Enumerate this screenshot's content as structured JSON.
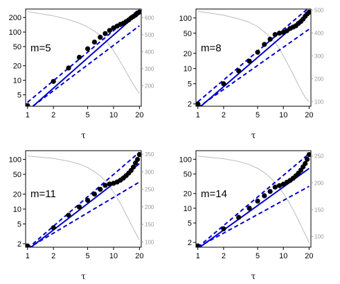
{
  "chart_data": [
    {
      "type": "scatter",
      "panel_label": "m=5",
      "xlabel": "τ",
      "x_ticks": [
        "1",
        "2",
        "5",
        "10",
        "20"
      ],
      "x_ticks_v": [
        1,
        2,
        5,
        10,
        20
      ],
      "y_ticks": [
        "5",
        "10",
        "20",
        "50",
        "100",
        "200"
      ],
      "y_ticks_v": [
        5,
        10,
        20,
        50,
        100,
        200
      ],
      "y_right_ticks": [
        "200",
        "300",
        "400",
        "500",
        "600"
      ],
      "y_right_ticks_v": [
        200,
        300,
        400,
        500,
        600
      ],
      "x_range": [
        0.95,
        21
      ],
      "y_range": [
        2.9,
        300
      ],
      "y_right_range": [
        80,
        650
      ],
      "points": {
        "x": [
          1,
          2,
          3,
          4,
          5,
          6,
          7,
          8,
          9,
          10,
          11,
          12,
          13,
          14,
          15,
          16,
          17,
          18,
          19,
          20
        ],
        "y": [
          3,
          9.5,
          18,
          30,
          45,
          62,
          78,
          93,
          108,
          122,
          133,
          144,
          152,
          165,
          178,
          196,
          210,
          225,
          245,
          260
        ]
      },
      "fit_line": {
        "x": [
          1,
          20
        ],
        "y": [
          2.3,
          260
        ],
        "color": "#0000cc"
      },
      "upper_band": {
        "x": [
          1,
          20
        ],
        "y": [
          3.5,
          300
        ],
        "color": "#0000cc"
      },
      "lower_band": {
        "x": [
          1,
          20
        ],
        "y": [
          2.4,
          135
        ],
        "color": "#0000cc"
      },
      "gray_curve": {
        "x": [
          1,
          2,
          3,
          4,
          5,
          6,
          7,
          8,
          9,
          10,
          11,
          12,
          13,
          14,
          15,
          16,
          17,
          18,
          19,
          20
        ],
        "y": [
          635,
          610,
          588,
          567,
          545,
          520,
          495,
          468,
          438,
          405,
          372,
          340,
          310,
          282,
          255,
          230,
          208,
          188,
          170,
          155
        ],
        "color": "#bbbbbb"
      }
    },
    {
      "type": "scatter",
      "panel_label": "m=8",
      "xlabel": "τ",
      "x_ticks": [
        "1",
        "2",
        "5",
        "10",
        "20"
      ],
      "x_ticks_v": [
        1,
        2,
        5,
        10,
        20
      ],
      "y_ticks": [
        "2",
        "5",
        "10",
        "20",
        "50",
        "100"
      ],
      "y_ticks_v": [
        2,
        5,
        10,
        20,
        50,
        100
      ],
      "y_right_ticks": [
        "100",
        "200",
        "300",
        "400",
        "500"
      ],
      "y_right_ticks_v": [
        100,
        200,
        300,
        400,
        500
      ],
      "x_range": [
        0.95,
        21
      ],
      "y_range": [
        1.8,
        150
      ],
      "y_right_range": [
        80,
        505
      ],
      "points": {
        "x": [
          1,
          2,
          3,
          4,
          5,
          6,
          7,
          8,
          9,
          10,
          11,
          12,
          13,
          14,
          15,
          16,
          17,
          18,
          19,
          20
        ],
        "y": [
          2,
          5,
          9,
          14,
          21,
          30,
          38,
          47,
          50,
          52,
          56,
          62,
          66,
          70,
          78,
          85,
          95,
          108,
          120,
          130
        ]
      },
      "fit_line": {
        "x": [
          1,
          20
        ],
        "y": [
          1.6,
          125
        ],
        "color": "#0000cc"
      },
      "upper_band": {
        "x": [
          1,
          20
        ],
        "y": [
          2.2,
          160
        ],
        "color": "#0000cc"
      },
      "lower_band": {
        "x": [
          1,
          20
        ],
        "y": [
          1.7,
          60
        ],
        "color": "#0000cc"
      },
      "gray_curve": {
        "x": [
          1,
          2,
          3,
          4,
          5,
          6,
          7,
          8,
          9,
          10,
          11,
          12,
          13,
          14,
          15,
          16,
          17,
          18,
          19,
          20
        ],
        "y": [
          495,
          478,
          462,
          447,
          428,
          405,
          382,
          358,
          330,
          300,
          272,
          245,
          220,
          195,
          172,
          152,
          135,
          120,
          108,
          100
        ],
        "color": "#bbbbbb"
      }
    },
    {
      "type": "scatter",
      "panel_label": "m=11",
      "xlabel": "τ",
      "x_ticks": [
        "1",
        "2",
        "5",
        "10",
        "20"
      ],
      "x_ticks_v": [
        1,
        2,
        5,
        10,
        20
      ],
      "y_ticks": [
        "2",
        "5",
        "10",
        "20",
        "50",
        "100"
      ],
      "y_ticks_v": [
        2,
        5,
        10,
        20,
        50,
        100
      ],
      "y_right_ticks": [
        "100",
        "150",
        "200",
        "250",
        "300",
        "350"
      ],
      "y_right_ticks_v": [
        100,
        150,
        200,
        250,
        300,
        350
      ],
      "x_range": [
        0.95,
        21
      ],
      "y_range": [
        1.7,
        150
      ],
      "y_right_range": [
        85,
        360
      ],
      "points": {
        "x": [
          1,
          2,
          3,
          4,
          5,
          6,
          7,
          8,
          9,
          10,
          11,
          12,
          13,
          14,
          15,
          16,
          17,
          18,
          19,
          20
        ],
        "y": [
          1.8,
          4.2,
          7.5,
          11,
          15,
          20,
          25,
          30,
          32,
          33,
          35,
          38,
          42,
          47,
          53,
          60,
          70,
          85,
          100,
          125
        ]
      },
      "fit_line": {
        "x": [
          1,
          20
        ],
        "y": [
          1.5,
          82
        ],
        "color": "#0000cc"
      },
      "upper_band": {
        "x": [
          1,
          20
        ],
        "y": [
          1.6,
          140
        ],
        "color": "#0000cc"
      },
      "lower_band": {
        "x": [
          1,
          20
        ],
        "y": [
          1.6,
          35
        ],
        "color": "#0000cc"
      },
      "gray_curve": {
        "x": [
          1,
          2,
          3,
          4,
          5,
          6,
          7,
          8,
          9,
          10,
          11,
          12,
          13,
          14,
          15,
          16,
          17,
          18,
          19,
          20
        ],
        "y": [
          345,
          338,
          330,
          322,
          312,
          300,
          288,
          274,
          258,
          242,
          226,
          210,
          194,
          178,
          164,
          150,
          138,
          126,
          115,
          105
        ],
        "color": "#bbbbbb"
      }
    },
    {
      "type": "scatter",
      "panel_label": "m=14",
      "xlabel": "τ",
      "x_ticks": [
        "1",
        "2",
        "5",
        "10",
        "20"
      ],
      "x_ticks_v": [
        1,
        2,
        5,
        10,
        20
      ],
      "y_ticks": [
        "2",
        "5",
        "10",
        "20",
        "50",
        "100"
      ],
      "y_ticks_v": [
        2,
        5,
        10,
        20,
        50,
        100
      ],
      "y_right_ticks": [
        "100",
        "150",
        "200",
        "250"
      ],
      "y_right_ticks_v": [
        100,
        150,
        200,
        250
      ],
      "x_range": [
        0.95,
        21
      ],
      "y_range": [
        1.6,
        150
      ],
      "y_right_range": [
        80,
        260
      ],
      "points": {
        "x": [
          1,
          2,
          3,
          4,
          5,
          6,
          7,
          8,
          9,
          10,
          11,
          12,
          13,
          14,
          15,
          16,
          17,
          18,
          19,
          20
        ],
        "y": [
          1.7,
          3.8,
          6.5,
          10,
          14,
          18,
          22,
          27,
          29,
          31,
          34,
          37,
          41,
          46,
          52,
          60,
          70,
          82,
          100,
          125
        ]
      },
      "fit_line": {
        "x": [
          1,
          20
        ],
        "y": [
          1.5,
          65
        ],
        "color": "#0000cc"
      },
      "upper_band": {
        "x": [
          1,
          20
        ],
        "y": [
          1.6,
          130
        ],
        "color": "#0000cc"
      },
      "lower_band": {
        "x": [
          1,
          20
        ],
        "y": [
          1.6,
          28
        ],
        "color": "#0000cc"
      },
      "gray_curve": {
        "x": [
          1,
          2,
          3,
          4,
          5,
          6,
          7,
          8,
          9,
          10,
          11,
          12,
          13,
          14,
          15,
          16,
          17,
          18,
          19,
          20
        ],
        "y": [
          250,
          245,
          240,
          234,
          227,
          219,
          210,
          200,
          190,
          180,
          170,
          160,
          150,
          140,
          130,
          121,
          112,
          104,
          97,
          88
        ],
        "color": "#bbbbbb"
      }
    }
  ]
}
